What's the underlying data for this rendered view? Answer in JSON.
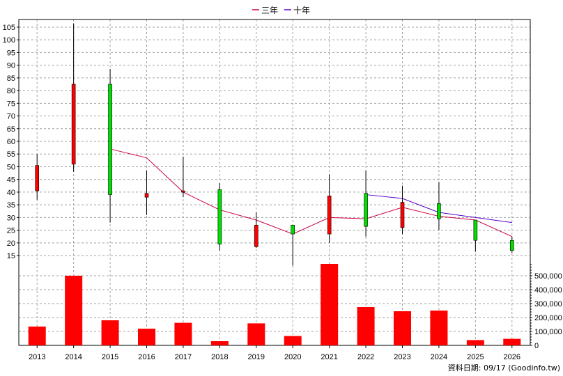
{
  "chart_data": [
    {
      "type": "candlestick",
      "legend_position": "top-center",
      "grid": true,
      "years": [
        "2013",
        "2014",
        "2015",
        "2016",
        "2017",
        "2018",
        "2019",
        "2020",
        "2021",
        "2022",
        "2023",
        "2024",
        "2025",
        "2026"
      ],
      "yticks": [
        15,
        20,
        25,
        30,
        35,
        40,
        45,
        50,
        55,
        60,
        65,
        70,
        75,
        80,
        85,
        90,
        95,
        100,
        105
      ],
      "ylim": [
        12,
        108
      ],
      "candles": [
        {
          "year": "2013",
          "open": 40.5,
          "close": 50.5,
          "high": 55,
          "low": 37,
          "color": "red"
        },
        {
          "year": "2014",
          "open": 51,
          "close": 82.5,
          "high": 106.5,
          "low": 48,
          "color": "red"
        },
        {
          "year": "2015",
          "open": 82.5,
          "close": 39,
          "high": 88.5,
          "low": 28,
          "color": "green"
        },
        {
          "year": "2016",
          "open": 38,
          "close": 39.5,
          "high": 48.5,
          "low": 31,
          "color": "red"
        },
        {
          "year": "2017",
          "open": 40,
          "close": 40.5,
          "high": 54,
          "low": 38,
          "color": "red"
        },
        {
          "year": "2018",
          "open": 41,
          "close": 19.5,
          "high": 43.5,
          "low": 17,
          "color": "green"
        },
        {
          "year": "2019",
          "open": 18.5,
          "close": 27,
          "high": 32,
          "low": 18,
          "color": "red"
        },
        {
          "year": "2020",
          "open": 27,
          "close": 23.5,
          "high": 27,
          "low": 11,
          "color": "green"
        },
        {
          "year": "2021",
          "open": 23.5,
          "close": 38.5,
          "high": 47,
          "low": 20,
          "color": "red"
        },
        {
          "year": "2022",
          "open": 39.5,
          "close": 26.5,
          "high": 48.5,
          "low": 22.5,
          "color": "green"
        },
        {
          "year": "2023",
          "open": 26,
          "close": 36,
          "high": 42.5,
          "low": 23.5,
          "color": "red"
        },
        {
          "year": "2024",
          "open": 35.5,
          "close": 29.5,
          "high": 44,
          "low": 25,
          "color": "green"
        },
        {
          "year": "2025",
          "open": 29,
          "close": 21,
          "high": 29,
          "low": 16.5,
          "color": "green"
        },
        {
          "year": "2026",
          "open": 21,
          "close": 17,
          "high": 22.5,
          "low": 16,
          "color": "green"
        }
      ],
      "series": [
        {
          "name": "三年",
          "color": "#cc0044",
          "points": [
            [
              "2015",
              57
            ],
            [
              "2016",
              53.5
            ],
            [
              "2017",
              40
            ],
            [
              "2018",
              33
            ],
            [
              "2019",
              29
            ],
            [
              "2020",
              23.5
            ],
            [
              "2021",
              30
            ],
            [
              "2022",
              29.5
            ],
            [
              "2023",
              34
            ],
            [
              "2024",
              30.5
            ],
            [
              "2025",
              29
            ],
            [
              "2026",
              22.5
            ]
          ]
        },
        {
          "name": "十年",
          "color": "#5500cc",
          "points": [
            [
              "2022",
              39
            ],
            [
              "2023",
              37.5
            ],
            [
              "2024",
              32
            ],
            [
              "2025",
              30
            ],
            [
              "2026",
              28
            ]
          ]
        }
      ]
    },
    {
      "type": "bar",
      "categories": [
        "2013",
        "2014",
        "2015",
        "2016",
        "2017",
        "2018",
        "2019",
        "2020",
        "2021",
        "2022",
        "2023",
        "2024",
        "2025",
        "2026"
      ],
      "values": [
        135000,
        500000,
        180000,
        120000,
        162000,
        30000,
        158000,
        67000,
        585000,
        275000,
        245000,
        250000,
        38000,
        47000
      ],
      "yticks": [
        {
          "value": 0,
          "label": "0"
        },
        {
          "value": 100000,
          "label": "100,000"
        },
        {
          "value": 200000,
          "label": "200,000"
        },
        {
          "value": 300000,
          "label": "300,000"
        },
        {
          "value": 400000,
          "label": "400,000"
        },
        {
          "value": 500000,
          "label": "500,000"
        }
      ],
      "ylim": [
        0,
        590000
      ],
      "color": "#ff0000",
      "grid": true
    }
  ],
  "colors": {
    "up": "#ff0000",
    "down": "#00dd00",
    "bar": "#ff0000",
    "grid": "#a0a0a0"
  },
  "footer": "資料日期: 09/17  (Goodinfo.tw)"
}
